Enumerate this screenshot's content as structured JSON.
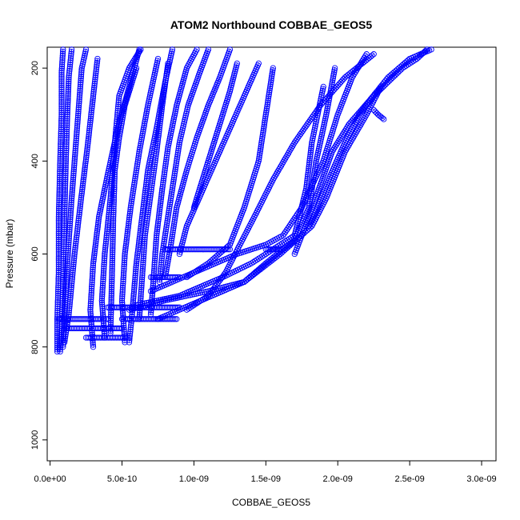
{
  "chart_data": {
    "type": "scatter",
    "title": "ATOM2 Northbound COBBAE_GEOS5",
    "xlabel": "COBBAE_GEOS5",
    "ylabel": "Pressure (mbar)",
    "xlim": [
      -2e-11,
      3.1e-09
    ],
    "ylim": [
      1045,
      155
    ],
    "y_reversed": true,
    "x_ticks": [
      0,
      5e-10,
      1e-09,
      1.5e-09,
      2e-09,
      2.5e-09,
      3e-09
    ],
    "x_tick_labels": [
      "0.0e+00",
      "5.0e-10",
      "1.0e-09",
      "1.5e-09",
      "2.0e-09",
      "2.5e-09",
      "3.0e-09"
    ],
    "y_ticks": [
      200,
      400,
      600,
      800,
      1000
    ],
    "y_tick_labels": [
      "200",
      "400",
      "600",
      "800",
      "1000"
    ],
    "marker": "open-circle",
    "color": "#0000ff",
    "grid": false,
    "series": [
      {
        "x": [
          5e-11,
          5e-11,
          6e-11,
          6e-11,
          7e-11,
          8e-11,
          8e-11,
          9e-11
        ],
        "y": [
          810,
          740,
          640,
          520,
          400,
          300,
          210,
          160
        ]
      },
      {
        "x": [
          7e-11,
          8e-11,
          9e-11,
          1e-10,
          1.1e-10,
          1.2e-10,
          1.3e-10,
          1.5e-10
        ],
        "y": [
          810,
          760,
          660,
          520,
          400,
          300,
          220,
          160
        ]
      },
      {
        "x": [
          9e-11,
          1e-10,
          1.2e-10,
          1.5e-10,
          1.8e-10,
          2e-10,
          2.2e-10,
          2.5e-10
        ],
        "y": [
          800,
          740,
          620,
          480,
          360,
          280,
          200,
          160
        ]
      },
      {
        "x": [
          1e-10,
          1.3e-10,
          1.7e-10,
          2.2e-10,
          2.6e-10,
          3e-10,
          3.3e-10
        ],
        "y": [
          790,
          730,
          600,
          470,
          370,
          260,
          180
        ]
      },
      {
        "x": [
          3e-10,
          2.8e-10,
          3e-10,
          3.4e-10,
          4e-10,
          4.7e-10,
          5.5e-10,
          6.2e-10
        ],
        "y": [
          800,
          720,
          620,
          520,
          430,
          330,
          240,
          160
        ]
      },
      {
        "x": [
          3.8e-10,
          3.6e-10,
          3.8e-10,
          4.2e-10,
          4.5e-10,
          4.8e-10,
          5.5e-10,
          6.3e-10
        ],
        "y": [
          780,
          700,
          600,
          480,
          360,
          260,
          200,
          160
        ]
      },
      {
        "x": [
          4.2e-10,
          4.3e-10,
          4.4e-10,
          4.5e-10,
          4.8e-10,
          5.2e-10,
          6e-10
        ],
        "y": [
          770,
          650,
          520,
          420,
          350,
          280,
          200
        ]
      },
      {
        "x": [
          5.2e-10,
          5e-10,
          5.2e-10,
          5.6e-10,
          6.2e-10,
          6.8e-10,
          7.5e-10
        ],
        "y": [
          790,
          700,
          600,
          500,
          380,
          280,
          180
        ]
      },
      {
        "x": [
          5.5e-10,
          5.7e-10,
          6e-10,
          6.4e-10,
          6.8e-10,
          7.4e-10,
          8e-10,
          8.5e-10
        ],
        "y": [
          790,
          730,
          620,
          520,
          420,
          330,
          230,
          160
        ]
      },
      {
        "x": [
          6.2e-10,
          6.4e-10,
          6.6e-10,
          7e-10,
          7.4e-10,
          7.8e-10,
          8.2e-10
        ],
        "y": [
          740,
          650,
          560,
          470,
          380,
          280,
          190
        ]
      },
      {
        "x": [
          7e-10,
          7.2e-10,
          7.4e-10,
          7.8e-10,
          8.2e-10,
          8.8e-10,
          9.5e-10,
          1.02e-09
        ],
        "y": [
          730,
          650,
          560,
          460,
          370,
          280,
          200,
          160
        ]
      },
      {
        "x": [
          7.6e-10,
          7.8e-10,
          8.2e-10,
          8.6e-10,
          9e-10,
          9.6e-10,
          1.04e-09,
          1.1e-09
        ],
        "y": [
          660,
          600,
          520,
          440,
          360,
          280,
          210,
          160
        ]
      },
      {
        "x": [
          8e-10,
          8.4e-10,
          8.8e-10,
          9.5e-10,
          1.02e-09,
          1.1e-09,
          1.18e-09,
          1.25e-09
        ],
        "y": [
          650,
          580,
          500,
          420,
          350,
          280,
          220,
          160
        ]
      },
      {
        "x": [
          9e-10,
          9.5e-10,
          1.05e-09,
          1.15e-09,
          1.25e-09,
          1.35e-09,
          1.45e-09
        ],
        "y": [
          600,
          540,
          470,
          400,
          330,
          260,
          190
        ]
      },
      {
        "x": [
          9.5e-10,
          1.1e-09,
          1.25e-09,
          1.35e-09,
          1.45e-09,
          1.5e-09,
          1.55e-09
        ],
        "y": [
          650,
          620,
          580,
          500,
          400,
          300,
          200
        ]
      },
      {
        "x": [
          5.5e-10,
          8e-10,
          1.1e-09,
          1.35e-09,
          1.5e-09,
          1.7e-09,
          1.8e-09,
          1.85e-09,
          1.92e-09,
          1.98e-09
        ],
        "y": [
          720,
          700,
          680,
          660,
          620,
          570,
          500,
          400,
          300,
          200
        ]
      },
      {
        "x": [
          6e-10,
          9e-10,
          1.2e-09,
          1.4e-09,
          1.55e-09,
          1.7e-09,
          1.78e-09,
          1.82e-09,
          1.9e-09
        ],
        "y": [
          710,
          690,
          650,
          620,
          590,
          560,
          460,
          360,
          240
        ]
      },
      {
        "x": [
          7e-10,
          1e-09,
          1.3e-09,
          1.5e-09,
          1.62e-09,
          1.75e-09,
          1.9e-09,
          2e-09,
          2.1e-09,
          2.2e-09
        ],
        "y": [
          680,
          640,
          600,
          580,
          560,
          500,
          400,
          300,
          220,
          170
        ]
      },
      {
        "x": [
          7.5e-10,
          1.05e-09,
          1.35e-09,
          1.6e-09,
          1.82e-09,
          1.92e-09,
          2.05e-09,
          2.2e-09,
          2.3e-09
        ],
        "y": [
          740,
          700,
          660,
          600,
          540,
          480,
          380,
          300,
          240
        ]
      },
      {
        "x": [
          1.8e-09,
          1.86e-09,
          1.95e-09,
          2.05e-09,
          2.15e-09,
          2.25e-09,
          2.35e-09,
          2.45e-09,
          2.55e-09,
          2.62e-09
        ],
        "y": [
          540,
          500,
          430,
          360,
          300,
          260,
          230,
          200,
          180,
          160
        ]
      },
      {
        "x": [
          1.7e-09,
          1.8e-09,
          1.88e-09,
          1.96e-09,
          2.08e-09,
          2.22e-09,
          2.35e-09,
          2.5e-09,
          2.65e-09
        ],
        "y": [
          600,
          520,
          450,
          380,
          320,
          270,
          220,
          180,
          160
        ]
      },
      {
        "x": [
          9.5e-10,
          1.1e-09,
          1.22e-09,
          1.32e-09,
          1.42e-09,
          1.55e-09,
          1.7e-09,
          1.88e-09,
          2.05e-09,
          2.25e-09
        ],
        "y": [
          720,
          690,
          640,
          580,
          520,
          440,
          360,
          280,
          220,
          170
        ]
      },
      {
        "x": [
          1e-09,
          1.05e-09,
          1.1e-09,
          1.15e-09,
          1.2e-09,
          1.25e-09,
          1.3e-09
        ],
        "y": [
          500,
          450,
          400,
          350,
          300,
          250,
          190
        ]
      },
      {
        "x": [
          2.25e-09,
          2.28e-09,
          2.32e-09
        ],
        "y": [
          290,
          300,
          310
        ]
      }
    ],
    "horizontal_runs": [
      {
        "x_start": 1e-10,
        "x_end": 5e-10,
        "y": 760
      },
      {
        "x_start": 5e-11,
        "x_end": 4e-10,
        "y": 740
      },
      {
        "x_start": 5e-10,
        "x_end": 8.8e-10,
        "y": 740
      },
      {
        "x_start": 4e-10,
        "x_end": 9e-10,
        "y": 715
      },
      {
        "x_start": 8e-10,
        "x_end": 1.25e-09,
        "y": 590
      },
      {
        "x_start": 1.5e-09,
        "x_end": 1.6e-09,
        "y": 590
      },
      {
        "x_start": 7e-10,
        "x_end": 9e-10,
        "y": 650
      },
      {
        "x_start": 2.5e-10,
        "x_end": 5.5e-10,
        "y": 780
      }
    ]
  }
}
